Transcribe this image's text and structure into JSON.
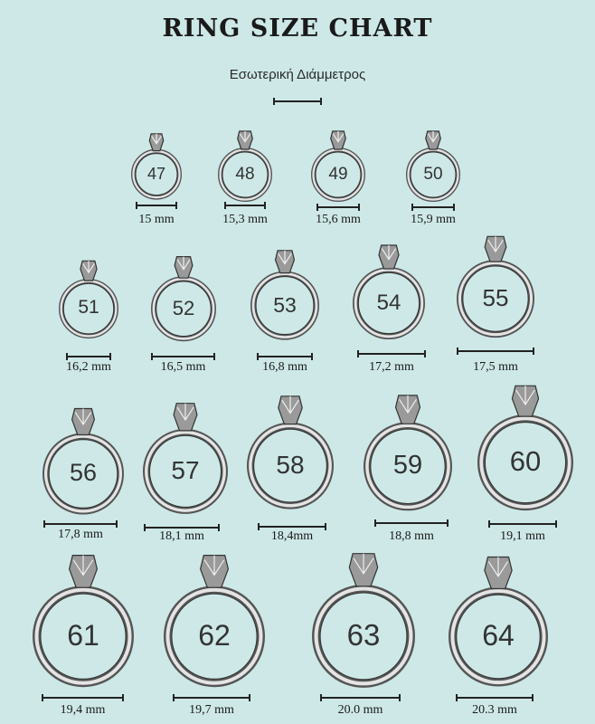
{
  "header": {
    "title": "RING SIZE CHART",
    "subtitle": "Εσωτερική Διάμμετρος"
  },
  "rings": [
    {
      "size": "47",
      "diameter": "15 mm"
    },
    {
      "size": "48",
      "diameter": "15,3 mm"
    },
    {
      "size": "49",
      "diameter": "15,6 mm"
    },
    {
      "size": "50",
      "diameter": "15,9 mm"
    },
    {
      "size": "51",
      "diameter": "16,2 mm"
    },
    {
      "size": "52",
      "diameter": "16,5 mm"
    },
    {
      "size": "53",
      "diameter": "16,8 mm"
    },
    {
      "size": "54",
      "diameter": "17,2 mm"
    },
    {
      "size": "55",
      "diameter": "17,5 mm"
    },
    {
      "size": "56",
      "diameter": "17,8 mm"
    },
    {
      "size": "57",
      "diameter": "18,1 mm"
    },
    {
      "size": "58",
      "diameter": "18,4mm"
    },
    {
      "size": "59",
      "diameter": "18,8 mm"
    },
    {
      "size": "60",
      "diameter": "19,1 mm"
    },
    {
      "size": "61",
      "diameter": "19,4 mm"
    },
    {
      "size": "62",
      "diameter": "19,7 mm"
    },
    {
      "size": "63",
      "diameter": "20.0 mm"
    },
    {
      "size": "64",
      "diameter": "20.3 mm"
    }
  ],
  "colors": {
    "background": "#cde8e7",
    "band": "#5a5a5a",
    "band_highlight": "#e8e8e8"
  }
}
